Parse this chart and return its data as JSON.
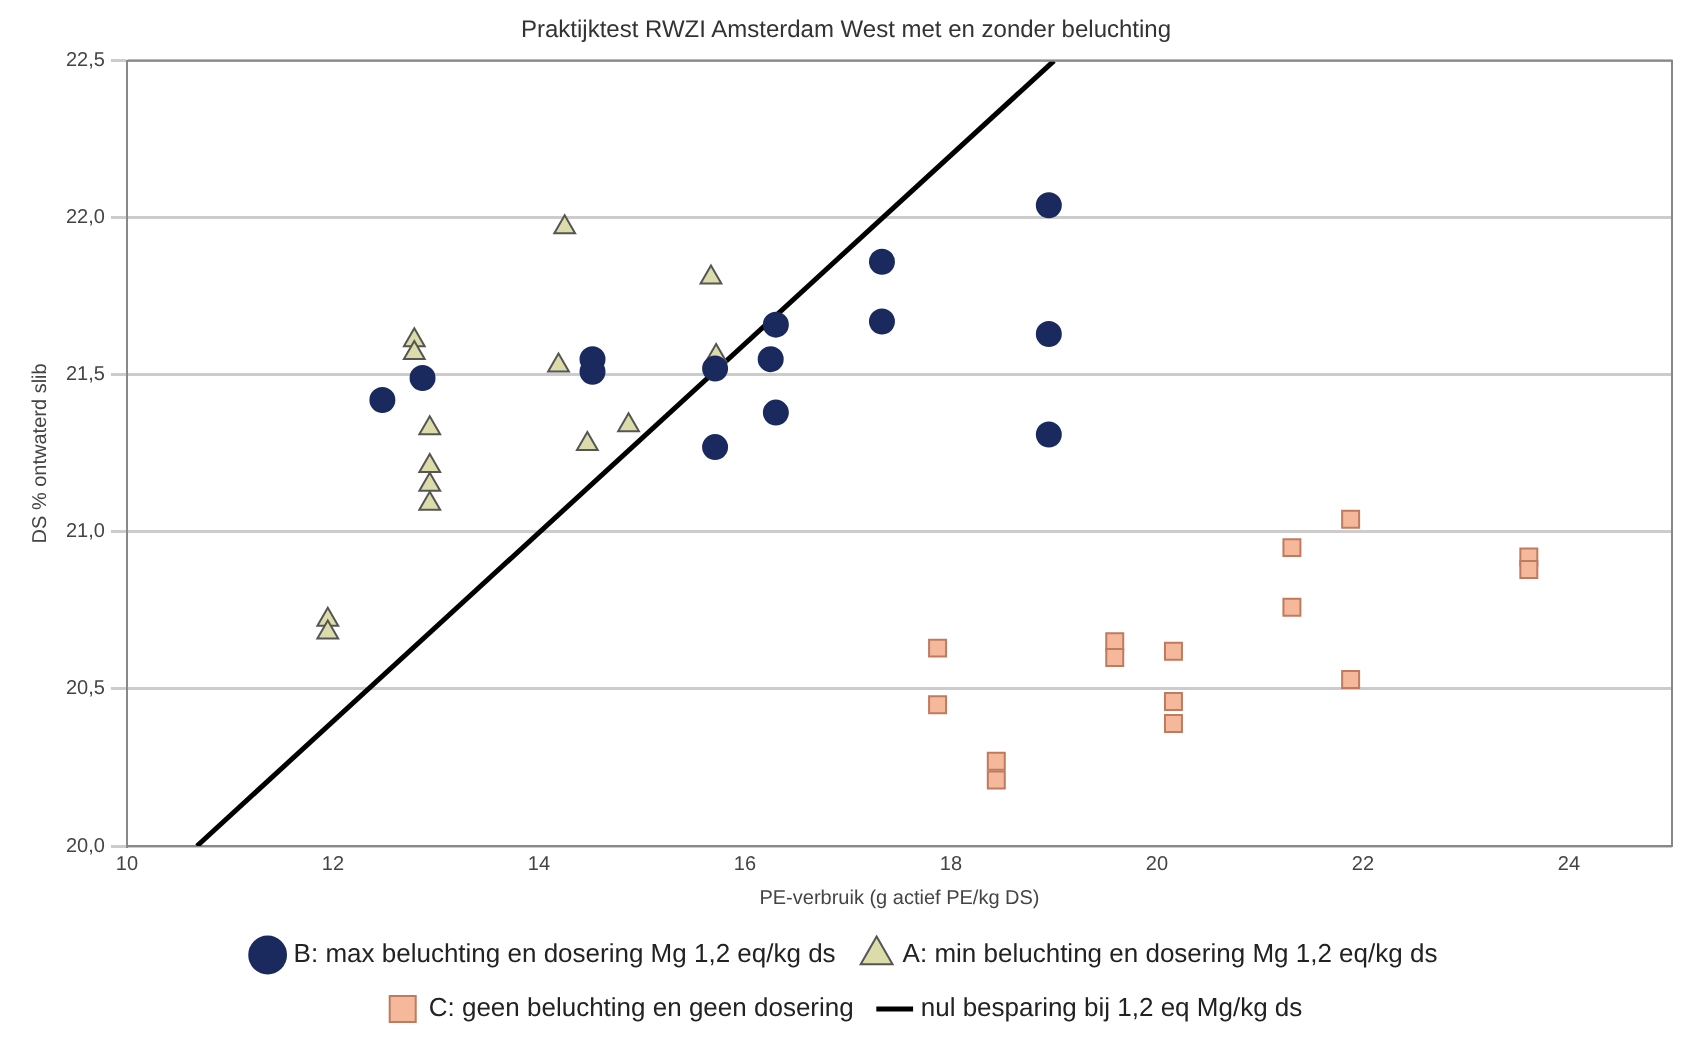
{
  "chart_data": {
    "type": "scatter",
    "title": "Praktijktest RWZI Amsterdam West met en zonder beluchting",
    "xlabel": "PE-verbruik (g actief PE/kg DS)",
    "ylabel": "DS % ontwaterd slib",
    "xlim": [
      10,
      25
    ],
    "xticks": [
      10,
      12,
      14,
      16,
      18,
      20,
      22,
      24
    ],
    "ylim": [
      20,
      22.5
    ],
    "yticks": [
      {
        "value": 20,
        "label": "20,0"
      },
      {
        "value": 20.5,
        "label": "20,5"
      },
      {
        "value": 21,
        "label": "21,0"
      },
      {
        "value": 21.5,
        "label": "21,5"
      },
      {
        "value": 22,
        "label": "22,0"
      },
      {
        "value": 22.5,
        "label": "22,5"
      }
    ],
    "grid": "y",
    "legend": "bottom",
    "series": [
      {
        "name": "B: max beluchting en dosering Mg 1,2 eq/kg ds",
        "color": "#1a2a5e",
        "marker": "circle",
        "x": [
          12.48,
          12.87,
          14.52,
          14.52,
          15.71,
          15.71,
          16.25,
          16.3,
          16.3,
          17.33,
          17.33,
          18.95,
          18.95,
          18.95
        ],
        "values": [
          21.42,
          21.49,
          21.55,
          21.51,
          21.52,
          21.27,
          21.55,
          21.66,
          21.38,
          21.86,
          21.67,
          22.04,
          21.63,
          21.31
        ]
      },
      {
        "name": "A: min beluchting en dosering Mg 1,2 eq/kg ds",
        "color": "#dcdcaa",
        "marker": "triangle",
        "x": [
          11.95,
          11.95,
          12.79,
          12.79,
          12.94,
          12.94,
          12.94,
          12.94,
          14.25,
          14.19,
          14.47,
          14.87,
          15.67,
          15.72
        ],
        "values": [
          20.72,
          20.68,
          21.61,
          21.57,
          21.33,
          21.21,
          21.15,
          21.09,
          21.97,
          21.53,
          21.28,
          21.34,
          21.81,
          21.56
        ]
      },
      {
        "name": "C: geen beluchting en geen dosering",
        "color": "#f5b89a",
        "marker": "square",
        "x": [
          17.87,
          17.87,
          18.44,
          18.44,
          19.59,
          19.59,
          20.16,
          20.16,
          20.16,
          21.31,
          21.31,
          21.88,
          21.88,
          23.61,
          23.61
        ],
        "values": [
          20.63,
          20.45,
          20.27,
          20.21,
          20.65,
          20.6,
          20.62,
          20.46,
          20.39,
          20.95,
          20.76,
          21.04,
          20.53,
          20.92,
          20.88
        ]
      },
      {
        "name": "nul besparing bij 1,2 eq Mg/kg ds",
        "type": "line",
        "color": "#000000",
        "marker": "none",
        "line_style": "solid",
        "x": [
          10.68,
          19
        ],
        "values": [
          20,
          22.5
        ]
      }
    ]
  }
}
